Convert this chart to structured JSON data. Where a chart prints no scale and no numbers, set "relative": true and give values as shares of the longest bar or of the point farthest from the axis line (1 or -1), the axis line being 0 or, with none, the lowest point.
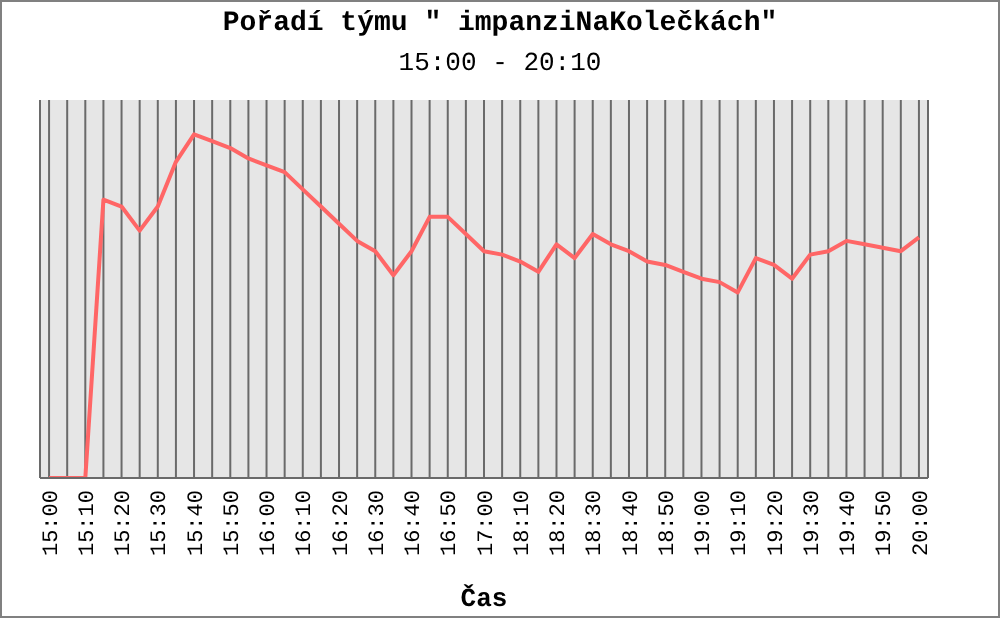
{
  "chart_data": {
    "type": "line",
    "title": "Pořadí týmu \" impanziNaKolečkách\"",
    "subtitle": "15:00 - 20:10",
    "xlabel": "Čas",
    "categories": [
      "15:00",
      null,
      "15:10",
      null,
      "15:20",
      null,
      "15:30",
      null,
      "15:40",
      null,
      "15:50",
      null,
      "16:00",
      null,
      "16:10",
      null,
      "16:20",
      null,
      "16:30",
      null,
      "16:40",
      null,
      "16:50",
      null,
      "17:00",
      null,
      "18:10",
      null,
      "18:20",
      null,
      "18:30",
      null,
      "18:40",
      null,
      "18:50",
      null,
      "19:00",
      null,
      "19:10",
      null,
      "19:20",
      null,
      "19:30",
      null,
      "19:40",
      null,
      "19:50",
      null,
      "20:00"
    ],
    "relative": true,
    "grid": "x",
    "tick_labels": "x",
    "marker": "none",
    "line_style": "solid",
    "series": [
      {
        "color": "#ff6666",
        "values": [
          0,
          0,
          0,
          0.81,
          0.79,
          0.72,
          0.79,
          0.92,
          1,
          0.98,
          0.96,
          0.93,
          0.91,
          0.89,
          0.84,
          0.79,
          0.74,
          0.69,
          0.66,
          0.59,
          0.66,
          0.76,
          0.76,
          0.71,
          0.66,
          0.65,
          0.63,
          0.6,
          0.68,
          0.64,
          0.71,
          0.68,
          0.66,
          0.63,
          0.62,
          0.6,
          0.58,
          0.57,
          0.54,
          0.64,
          0.62,
          0.58,
          0.65,
          0.66,
          0.69,
          0.68,
          0.67,
          0.66,
          0.7
        ]
      }
    ]
  }
}
